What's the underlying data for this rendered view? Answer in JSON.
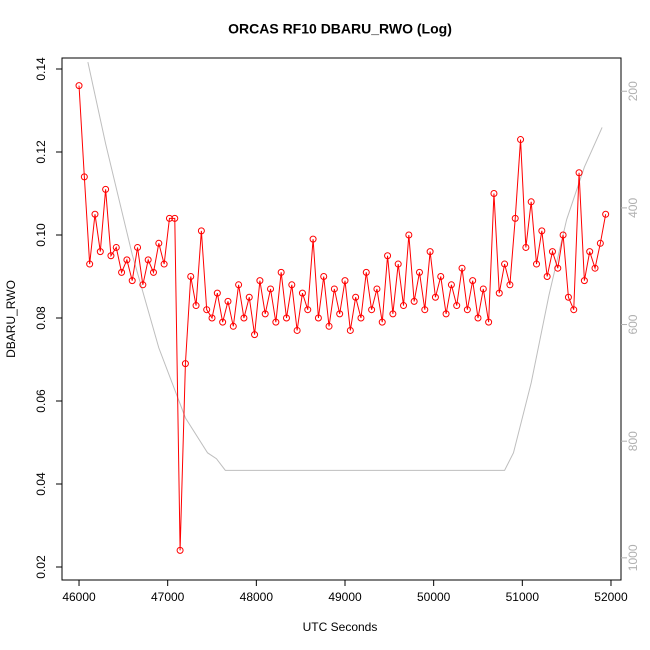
{
  "chart_data": {
    "type": "line",
    "title": "ORCAS RF10 DBARU_RWO (Log)",
    "x_label": "UTC Seconds",
    "y_label": "DBARU_RWO",
    "xlim": [
      45808,
      52113
    ],
    "xticks": [
      46000,
      47000,
      48000,
      49000,
      50000,
      51000,
      52000
    ],
    "ylim": [
      0.01687,
      0.14265
    ],
    "yticks": [
      0.02,
      0.04,
      0.06,
      0.08,
      {
        "value": 0.1,
        "label": "0.10"
      },
      0.12,
      0.14
    ],
    "y2lim": [
      1038,
      143
    ],
    "y2ticks": [
      200,
      400,
      600,
      800,
      1000
    ],
    "series": [
      {
        "color": "#ff0000",
        "markers": true,
        "x": [
          46000,
          46060,
          46120,
          46180,
          46240,
          46300,
          46360,
          46420,
          46480,
          46540,
          46600,
          46660,
          46720,
          46780,
          46840,
          46900,
          46960,
          47020,
          47080,
          47140,
          47200,
          47260,
          47320,
          47380,
          47440,
          47500,
          47560,
          47620,
          47680,
          47740,
          47800,
          47860,
          47920,
          47980,
          48040,
          48100,
          48160,
          48220,
          48280,
          48340,
          48400,
          48460,
          48520,
          48580,
          48640,
          48700,
          48760,
          48820,
          48880,
          48940,
          49000,
          49060,
          49120,
          49180,
          49240,
          49300,
          49360,
          49420,
          49480,
          49540,
          49600,
          49660,
          49720,
          49780,
          49840,
          49900,
          49960,
          50020,
          50080,
          50140,
          50200,
          50260,
          50320,
          50380,
          50440,
          50500,
          50560,
          50620,
          50680,
          50740,
          50800,
          50860,
          50920,
          50980,
          51040,
          51100,
          51160,
          51220,
          51280,
          51340,
          51400,
          51460,
          51520,
          51580,
          51640,
          51700,
          51760,
          51820,
          51880,
          51940
        ],
        "values": [
          0.136,
          0.114,
          0.093,
          0.105,
          0.096,
          0.111,
          0.095,
          0.097,
          0.091,
          0.094,
          0.089,
          0.097,
          0.088,
          0.094,
          0.091,
          0.098,
          0.093,
          0.104,
          0.104,
          0.024,
          0.069,
          0.09,
          0.083,
          0.101,
          0.082,
          0.08,
          0.086,
          0.079,
          0.084,
          0.078,
          0.088,
          0.08,
          0.085,
          0.076,
          0.089,
          0.081,
          0.087,
          0.079,
          0.091,
          0.08,
          0.088,
          0.077,
          0.086,
          0.082,
          0.099,
          0.08,
          0.09,
          0.078,
          0.087,
          0.081,
          0.089,
          0.077,
          0.085,
          0.08,
          0.091,
          0.082,
          0.087,
          0.079,
          0.095,
          0.081,
          0.093,
          0.083,
          0.1,
          0.084,
          0.091,
          0.082,
          0.096,
          0.085,
          0.09,
          0.081,
          0.088,
          0.083,
          0.092,
          0.082,
          0.089,
          0.08,
          0.087,
          0.079,
          0.11,
          0.086,
          0.093,
          0.088,
          0.104,
          0.123,
          0.097,
          0.108,
          0.093,
          0.101,
          0.09,
          0.096,
          0.092,
          0.1,
          0.085,
          0.082,
          0.115,
          0.089,
          0.096,
          0.092,
          0.098,
          0.105
        ]
      },
      {
        "color": "#bebebe",
        "markers": false,
        "axis": "y2",
        "x": [
          46100,
          46300,
          46600,
          46900,
          47200,
          47450,
          47550,
          47650,
          50800,
          50900,
          51100,
          51300,
          51500,
          51700,
          51900
        ],
        "values": [
          150,
          290,
          480,
          640,
          760,
          820,
          830,
          850,
          850,
          820,
          700,
          550,
          420,
          330,
          262
        ]
      }
    ]
  }
}
